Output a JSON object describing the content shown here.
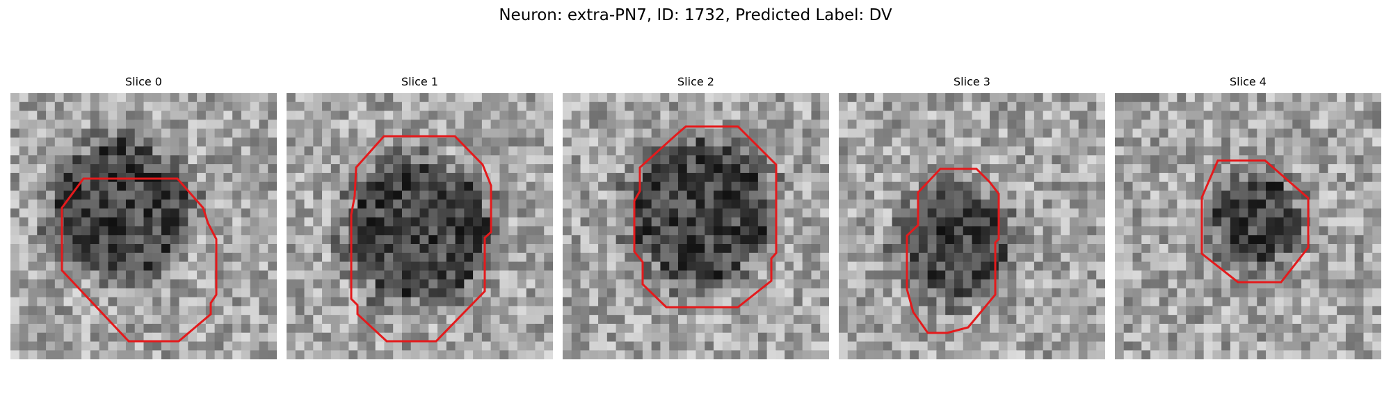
{
  "figure": {
    "title": "Neuron: extra-PN7, ID: 1732, Predicted Label: DV",
    "contour_color": "#e41a1c",
    "panels": [
      {
        "title": "Slice 0",
        "seed": 11
      },
      {
        "title": "Slice 1",
        "seed": 23
      },
      {
        "title": "Slice 2",
        "seed": 37
      },
      {
        "title": "Slice 3",
        "seed": 53
      },
      {
        "title": "Slice 4",
        "seed": 71
      }
    ]
  }
}
